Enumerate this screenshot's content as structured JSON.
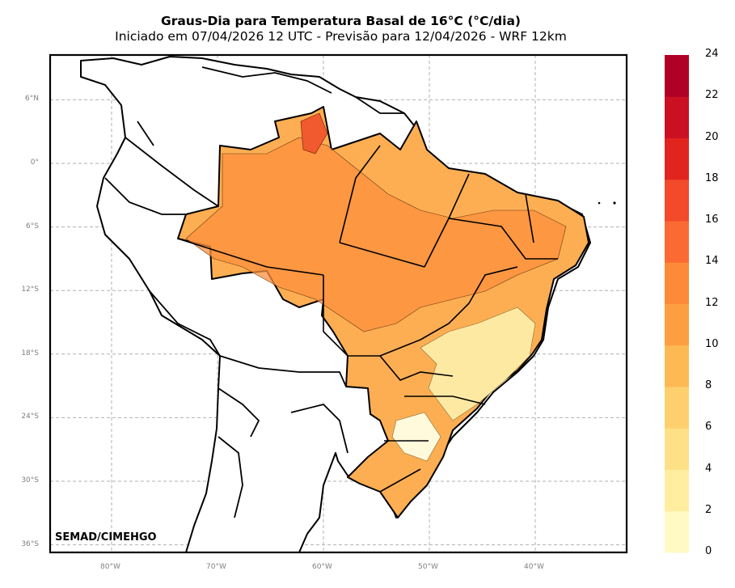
{
  "title": "Graus-Dia para Temperatura Basal de 16°C (°C/dia)",
  "subtitle": "Iniciado em 07/04/2026 12 UTC - Previsão para 12/04/2026 - WRF 12km",
  "credit": "SEMAD/CIMEHGO",
  "lat_ticks": [
    {
      "value": 6,
      "label": "6°N"
    },
    {
      "value": 0,
      "label": "0°"
    },
    {
      "value": -6,
      "label": "6°S"
    },
    {
      "value": -12,
      "label": "12°S"
    },
    {
      "value": -18,
      "label": "18°S"
    },
    {
      "value": -24,
      "label": "24°S"
    },
    {
      "value": -30,
      "label": "30°S"
    },
    {
      "value": -36,
      "label": "36°S"
    }
  ],
  "lon_ticks": [
    {
      "value": -80,
      "label": "80°W"
    },
    {
      "value": -70,
      "label": "70°W"
    },
    {
      "value": -60,
      "label": "60°W"
    },
    {
      "value": -50,
      "label": "50°W"
    },
    {
      "value": -40,
      "label": "40°W"
    }
  ],
  "colorbar": {
    "levels": [
      0,
      2,
      4,
      6,
      8,
      10,
      12,
      14,
      16,
      18,
      20,
      22,
      24
    ],
    "labels": [
      "0",
      "2",
      "4",
      "6",
      "8",
      "10",
      "12",
      "14",
      "16",
      "18",
      "20",
      "22",
      "24"
    ],
    "colors": [
      "#fff9c4",
      "#ffeea0",
      "#fee187",
      "#fecf6e",
      "#fdb954",
      "#fd9f41",
      "#fc8a38",
      "#fb6a33",
      "#f24a2a",
      "#e2241f",
      "#cc1024",
      "#b00026",
      "#8c0026"
    ]
  },
  "style": {
    "grid": "dashed-gray",
    "land_fill": "#ffffff",
    "border_color": "#000000"
  }
}
